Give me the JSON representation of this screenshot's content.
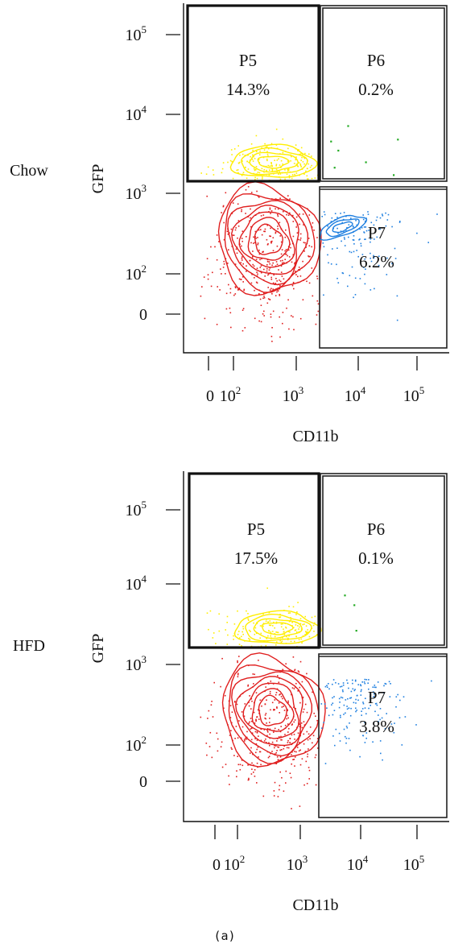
{
  "chart_data": [
    {
      "type": "scatter",
      "panel": "Chow",
      "row_label": "Chow",
      "xlabel": "CD11b",
      "ylabel": "GFP",
      "x_ticks": [
        {
          "label": "0",
          "sup": "",
          "v": 0
        },
        {
          "label": "10",
          "sup": "2",
          "v": 100
        },
        {
          "label": "10",
          "sup": "3",
          "v": 1000
        },
        {
          "label": "10",
          "sup": "4",
          "v": 10000
        },
        {
          "label": "10",
          "sup": "5",
          "v": 100000
        }
      ],
      "y_ticks": [
        {
          "label": "0",
          "sup": "",
          "v": 0
        },
        {
          "label": "10",
          "sup": "2",
          "v": 100
        },
        {
          "label": "10",
          "sup": "3",
          "v": 1000
        },
        {
          "label": "10",
          "sup": "4",
          "v": 10000
        },
        {
          "label": "10",
          "sup": "5",
          "v": 100000
        }
      ],
      "gates": [
        {
          "name": "P5",
          "value": "14.3%",
          "color": "#ffee00"
        },
        {
          "name": "P6",
          "value": "0.2%",
          "color": "#22aa22"
        },
        {
          "name": "P7",
          "value": "6.2%",
          "color": "#1e7fe0"
        }
      ],
      "colors": {
        "main": "#e01f1f",
        "P5": "#ffee00",
        "P6": "#22aa22",
        "P7": "#1e7fe0"
      }
    },
    {
      "type": "scatter",
      "panel": "HFD",
      "row_label": "HFD",
      "xlabel": "CD11b",
      "ylabel": "GFP",
      "x_ticks": [
        {
          "label": "0",
          "sup": "",
          "v": 0
        },
        {
          "label": "10",
          "sup": "2",
          "v": 100
        },
        {
          "label": "10",
          "sup": "3",
          "v": 1000
        },
        {
          "label": "10",
          "sup": "4",
          "v": 10000
        },
        {
          "label": "10",
          "sup": "5",
          "v": 100000
        }
      ],
      "y_ticks": [
        {
          "label": "0",
          "sup": "",
          "v": 0
        },
        {
          "label": "10",
          "sup": "2",
          "v": 100
        },
        {
          "label": "10",
          "sup": "3",
          "v": 1000
        },
        {
          "label": "10",
          "sup": "4",
          "v": 10000
        },
        {
          "label": "10",
          "sup": "5",
          "v": 100000
        }
      ],
      "gates": [
        {
          "name": "P5",
          "value": "17.5%",
          "color": "#ffee00"
        },
        {
          "name": "P6",
          "value": "0.1%",
          "color": "#22aa22"
        },
        {
          "name": "P7",
          "value": "3.8%",
          "color": "#1e7fe0"
        }
      ],
      "colors": {
        "main": "#e01f1f",
        "P5": "#ffee00",
        "P6": "#22aa22",
        "P7": "#1e7fe0"
      }
    }
  ],
  "caption": "(a)"
}
